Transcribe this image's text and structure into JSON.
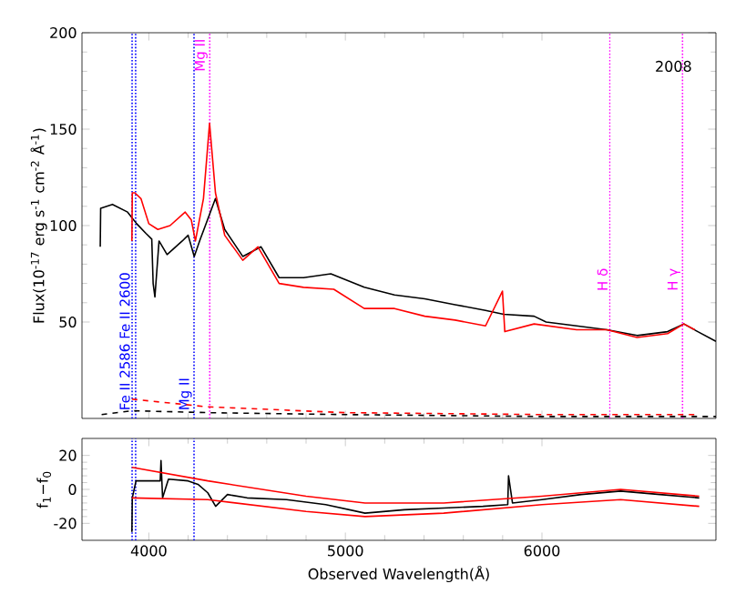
{
  "chart_data": [
    {
      "type": "line",
      "ylabel": "Flux(10$^{-17}$ erg s$^{-1}$ cm$^{-2}$ Å$^{-1}$)",
      "annotations": [
        "2008"
      ],
      "xlim": [
        3660,
        6885
      ],
      "ylim": [
        0,
        200
      ],
      "xticks": [
        4000,
        5000,
        6000
      ],
      "yticks": [
        50,
        100,
        150,
        200
      ],
      "tick_labels": "y",
      "series": [
        {
          "color": "#000000",
          "x": [
            3753,
            3755,
            3815,
            3892,
            3938,
            3985,
            4015,
            4022,
            4031,
            4052,
            4093,
            4170,
            4200,
            4231,
            4262,
            4339,
            4386,
            4478,
            4571,
            4663,
            4787,
            4926,
            5096,
            5250,
            5404,
            5558,
            5713,
            5805,
            5960,
            6021,
            6176,
            6330,
            6484,
            6639,
            6722,
            6793,
            6885
          ],
          "values": [
            89,
            109,
            111,
            107,
            101,
            96,
            93,
            70,
            63,
            92,
            85,
            92,
            95,
            84,
            93,
            114,
            98,
            84,
            89,
            73,
            73,
            75,
            68,
            64,
            62,
            59,
            56,
            54,
            53,
            50,
            48,
            46,
            43,
            45,
            49,
            45,
            40
          ]
        },
        {
          "color": "#ff0000",
          "x": [
            3914,
            3916,
            3929,
            3960,
            4000,
            4046,
            4108,
            4185,
            4216,
            4237,
            4278,
            4309,
            4339,
            4386,
            4478,
            4555,
            4663,
            4787,
            4941,
            5096,
            5250,
            5404,
            5558,
            5713,
            5799,
            5811,
            5960,
            6176,
            6330,
            6484,
            6639,
            6722,
            6777
          ],
          "values": [
            92,
            117,
            117,
            114,
            101,
            98,
            100,
            107,
            103,
            92,
            114,
            153,
            117,
            95,
            82,
            89,
            70,
            68,
            67,
            57,
            57,
            53,
            51,
            48,
            66,
            45,
            49,
            46,
            46,
            42,
            44,
            49,
            46
          ]
        },
        {
          "color": "#ff0000",
          "line_style": "dashed",
          "x": [
            3914,
            4300,
            5000,
            6000,
            6777
          ],
          "values": [
            10,
            6,
            3,
            2,
            2
          ]
        },
        {
          "color": "#000000",
          "line_style": "dashed",
          "x": [
            3760,
            3914,
            4300,
            5000,
            6000,
            6885
          ],
          "values": [
            2,
            4,
            3,
            2,
            1,
            1
          ]
        }
      ],
      "ref_lines": [
        {
          "axis": "x",
          "value": 3915,
          "label": "Fe II 2586",
          "color": "#0000ff",
          "line_style": "dotted"
        },
        {
          "axis": "x",
          "value": 3933,
          "label": "Fe II 2600",
          "color": "#0000ff",
          "line_style": "dotted"
        },
        {
          "axis": "x",
          "value": 4230,
          "label": "Mg II",
          "color": "#0000ff",
          "line_style": "dotted"
        },
        {
          "axis": "x",
          "value": 4310,
          "label": "Mg II",
          "color": "#ff00ff",
          "line_style": "dotted"
        },
        {
          "axis": "x",
          "value": 6345,
          "label": "H δ",
          "color": "#ff00ff",
          "line_style": "dotted"
        },
        {
          "axis": "x",
          "value": 6715,
          "label": "H γ",
          "color": "#ff00ff",
          "line_style": "dotted"
        }
      ]
    },
    {
      "type": "line",
      "xlabel": "Observed Wavelength(Å)",
      "ylabel": "f$_{1}$−f$_{0}$",
      "xlim": [
        3660,
        6885
      ],
      "ylim": [
        -30,
        30
      ],
      "xticks": [
        4000,
        5000,
        6000
      ],
      "yticks": [
        -20,
        0,
        20
      ],
      "series": [
        {
          "color": "#000000",
          "x": [
            3914,
            3916,
            3935,
            4000,
            4058,
            4062,
            4070,
            4100,
            4200,
            4250,
            4300,
            4340,
            4400,
            4500,
            4700,
            4900,
            5100,
            5300,
            5500,
            5700,
            5826,
            5830,
            5850,
            6000,
            6200,
            6400,
            6600,
            6800
          ],
          "values": [
            -25,
            -5,
            5,
            5,
            5,
            17,
            -5,
            6,
            5,
            3,
            -2,
            -10,
            -3,
            -5,
            -6,
            -9,
            -14,
            -12,
            -11,
            -10,
            -9,
            8,
            -8,
            -6,
            -3,
            -1,
            -3,
            -5
          ]
        },
        {
          "color": "#ff0000",
          "x": [
            3914,
            4300,
            4800,
            5100,
            5500,
            6000,
            6400,
            6800
          ],
          "values": [
            13,
            5,
            -4,
            -8,
            -8,
            -4,
            0,
            -4
          ]
        },
        {
          "color": "#ff0000",
          "x": [
            3914,
            4300,
            4800,
            5100,
            5500,
            6000,
            6400,
            6800
          ],
          "values": [
            -5,
            -6,
            -13,
            -16,
            -14,
            -9,
            -6,
            -10
          ]
        }
      ],
      "ref_lines": [
        {
          "axis": "x",
          "value": 3915,
          "color": "#0000ff",
          "line_style": "dotted"
        },
        {
          "axis": "x",
          "value": 3933,
          "color": "#0000ff",
          "line_style": "dotted"
        },
        {
          "axis": "x",
          "value": 4230,
          "color": "#0000ff",
          "line_style": "dotted"
        }
      ]
    }
  ]
}
